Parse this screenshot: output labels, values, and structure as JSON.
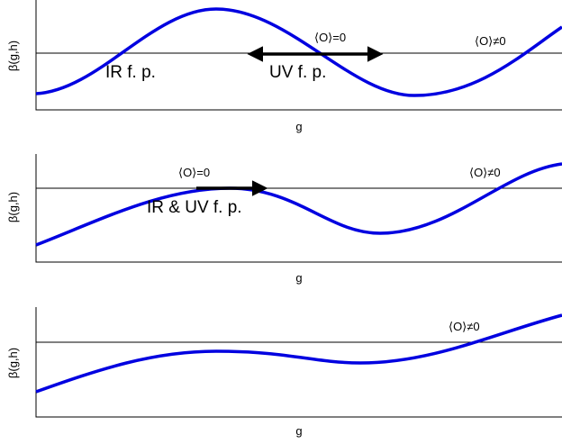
{
  "panels": [
    {
      "ylabel": "β(g,h)",
      "xlabel": "g",
      "annotations": [
        "IR f. p.",
        "UV f. p.",
        "⟨O⟩=0",
        "⟨O⟩≠0"
      ]
    },
    {
      "ylabel": "β(g,h)",
      "xlabel": "g",
      "annotations": [
        "⟨O⟩=0",
        "IR & UV f. p.",
        "⟨O⟩≠0"
      ]
    },
    {
      "ylabel": "β(g,h)",
      "xlabel": "g",
      "annotations": [
        "⟨O⟩≠0"
      ]
    }
  ],
  "colors": {
    "curve": "#0000e0",
    "axes": "#000000"
  }
}
